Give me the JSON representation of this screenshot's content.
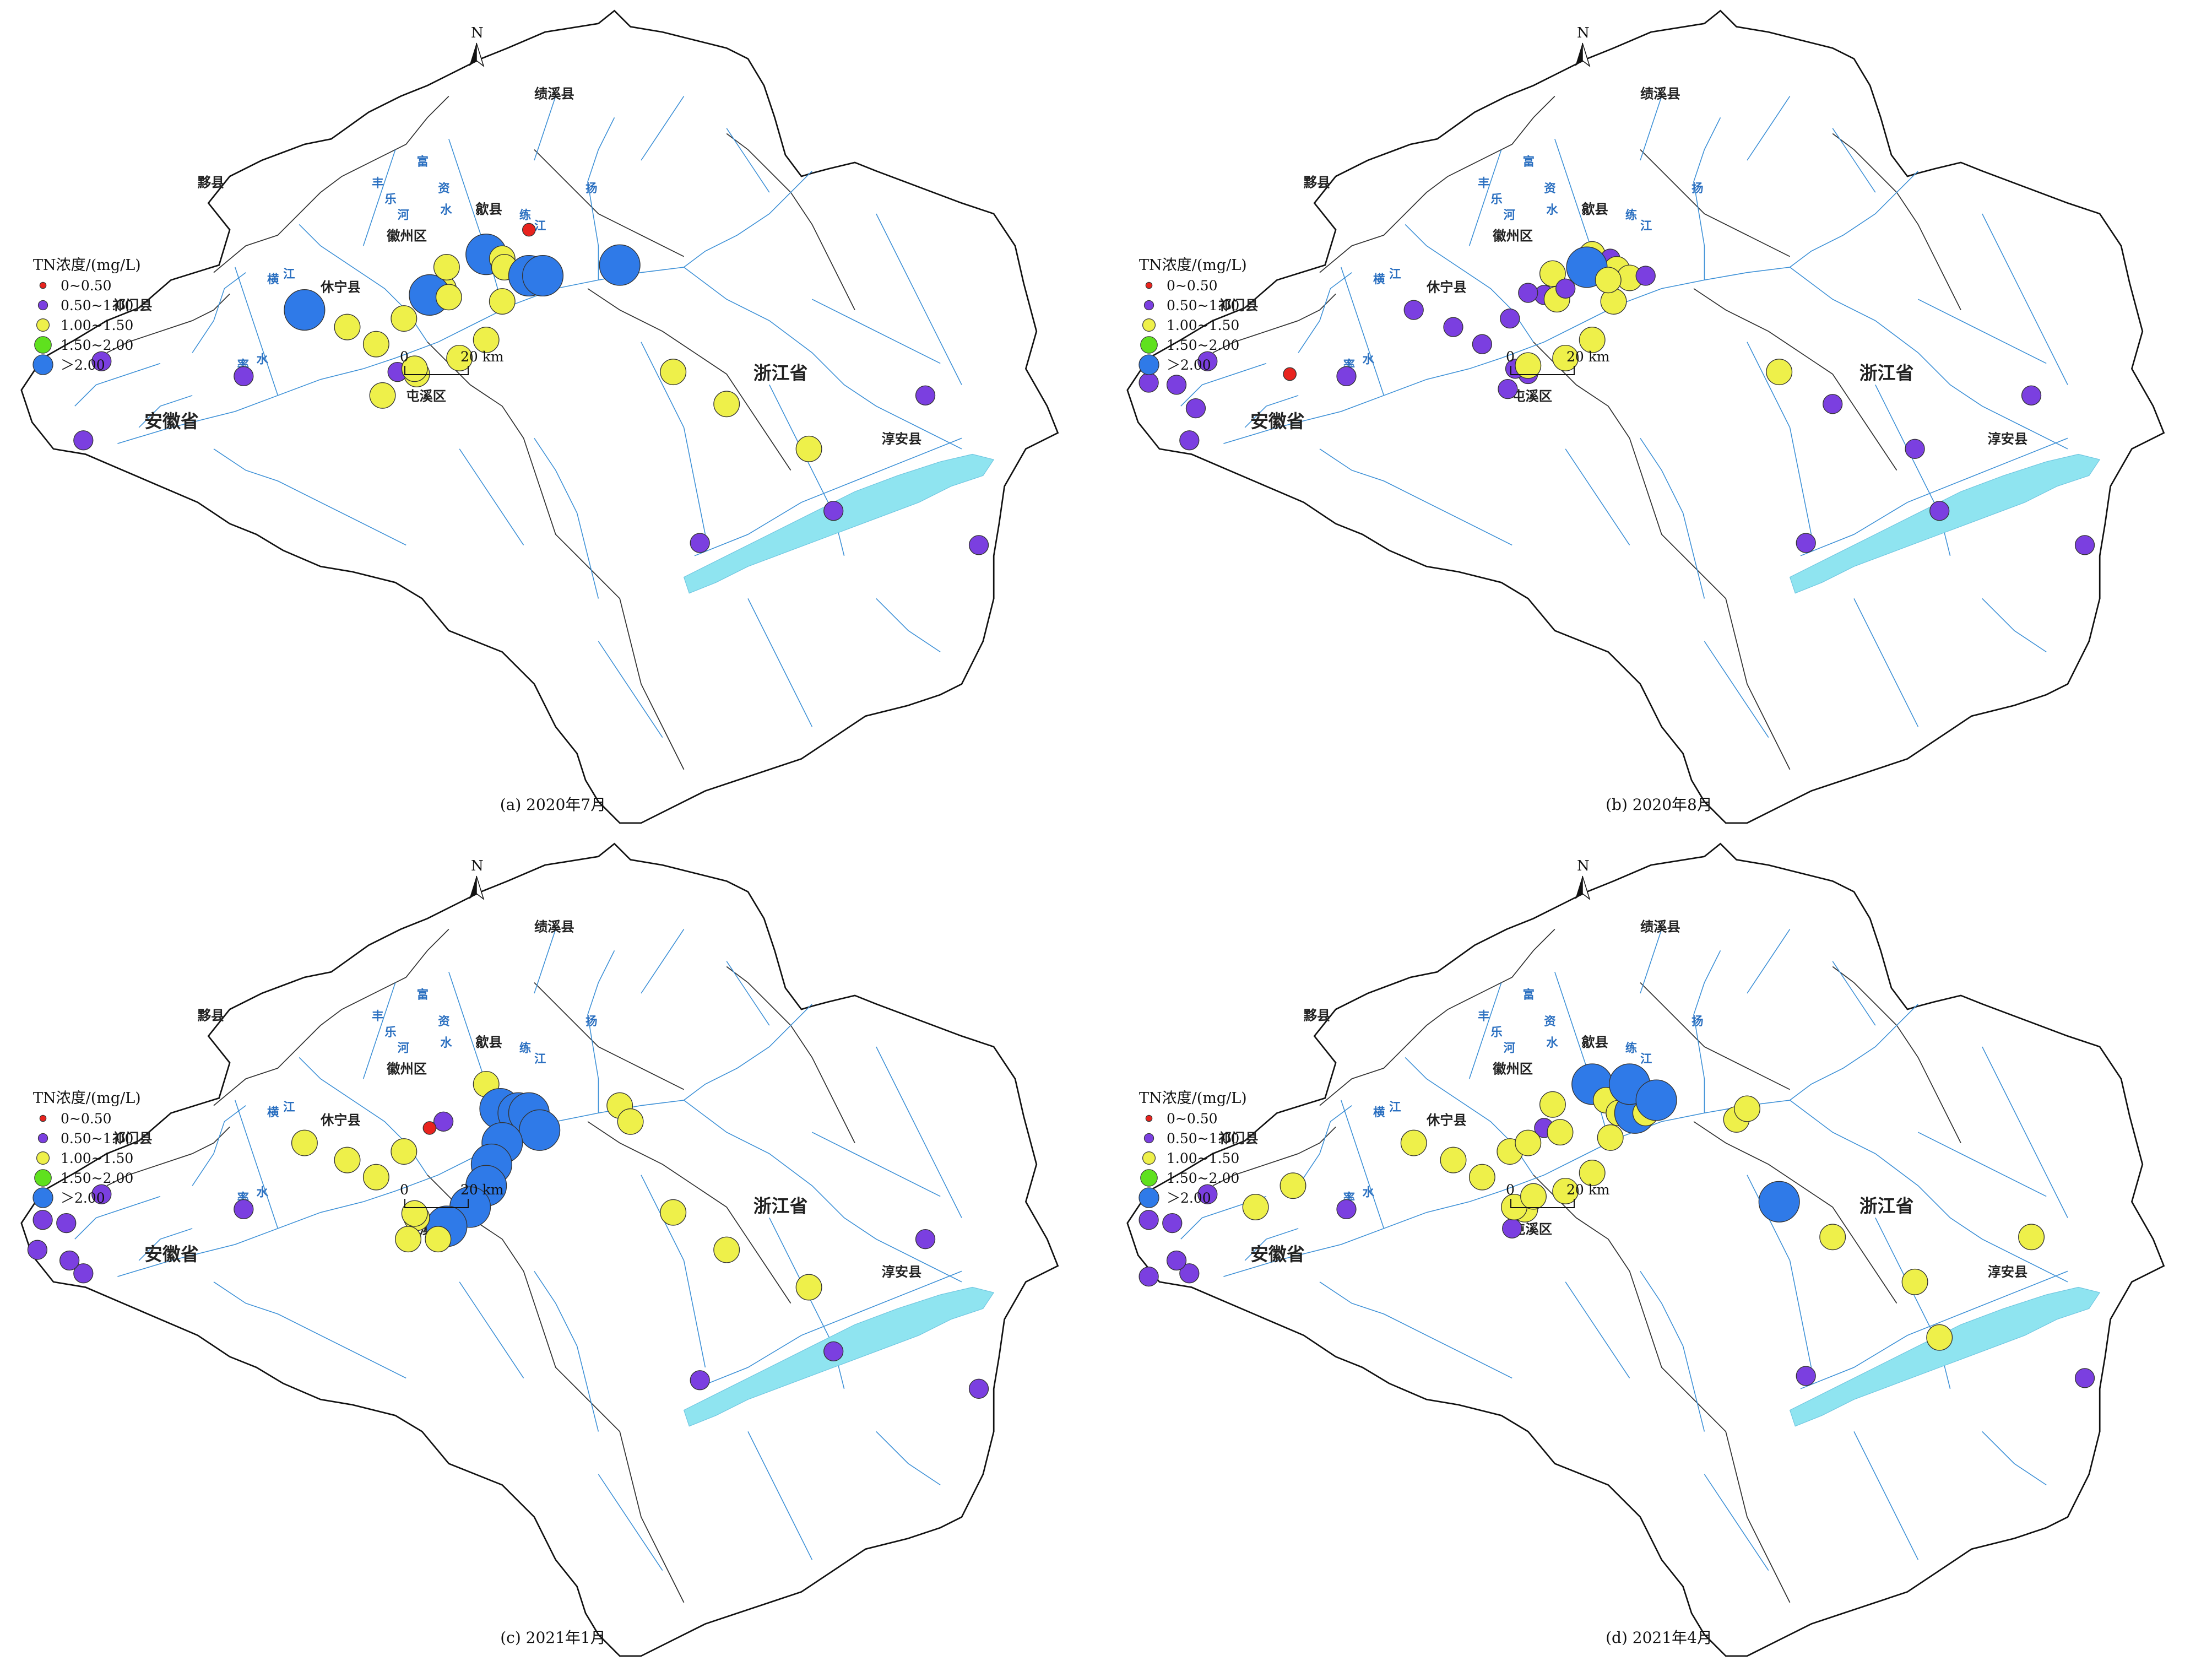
{
  "legend": {
    "title": "TN浓度/(mg/L)",
    "classes": [
      {
        "label": "0~0.50",
        "color": "#e8231e"
      },
      {
        "label": "0.50~1.00",
        "color": "#7b3fe0"
      },
      {
        "label": "1.00~1.50",
        "color": "#eef04a"
      },
      {
        "label": "1.50~2.00",
        "color": "#5fe11e"
      },
      {
        "label": "＞2.00",
        "color": "#2f7ae8"
      }
    ]
  },
  "place_labels": {
    "jixi": "绩溪县",
    "yixian": "黟县",
    "shexian": "歙县",
    "huizhou": "徽州区",
    "xiuning": "休宁县",
    "qimen": "祁门县",
    "anhui": "安徽省",
    "tunxi": "屯溪区",
    "zhejiang": "浙江省",
    "chunan": "淳安县"
  },
  "river_labels": {
    "fengle": "丰乐河",
    "fuzi": "富资水",
    "yang": "扬",
    "heng": "横江",
    "lu": "率水",
    "lian": "练江"
  },
  "north_label": "N",
  "scale_bar": {
    "start": "0",
    "end": "20 km"
  },
  "panels": [
    {
      "caption": "(a)  2020年7月"
    },
    {
      "caption": "(b)  2020年8月"
    },
    {
      "caption": "(c)  2021年1月"
    },
    {
      "caption": "(d)  2021年4月"
    }
  ]
}
